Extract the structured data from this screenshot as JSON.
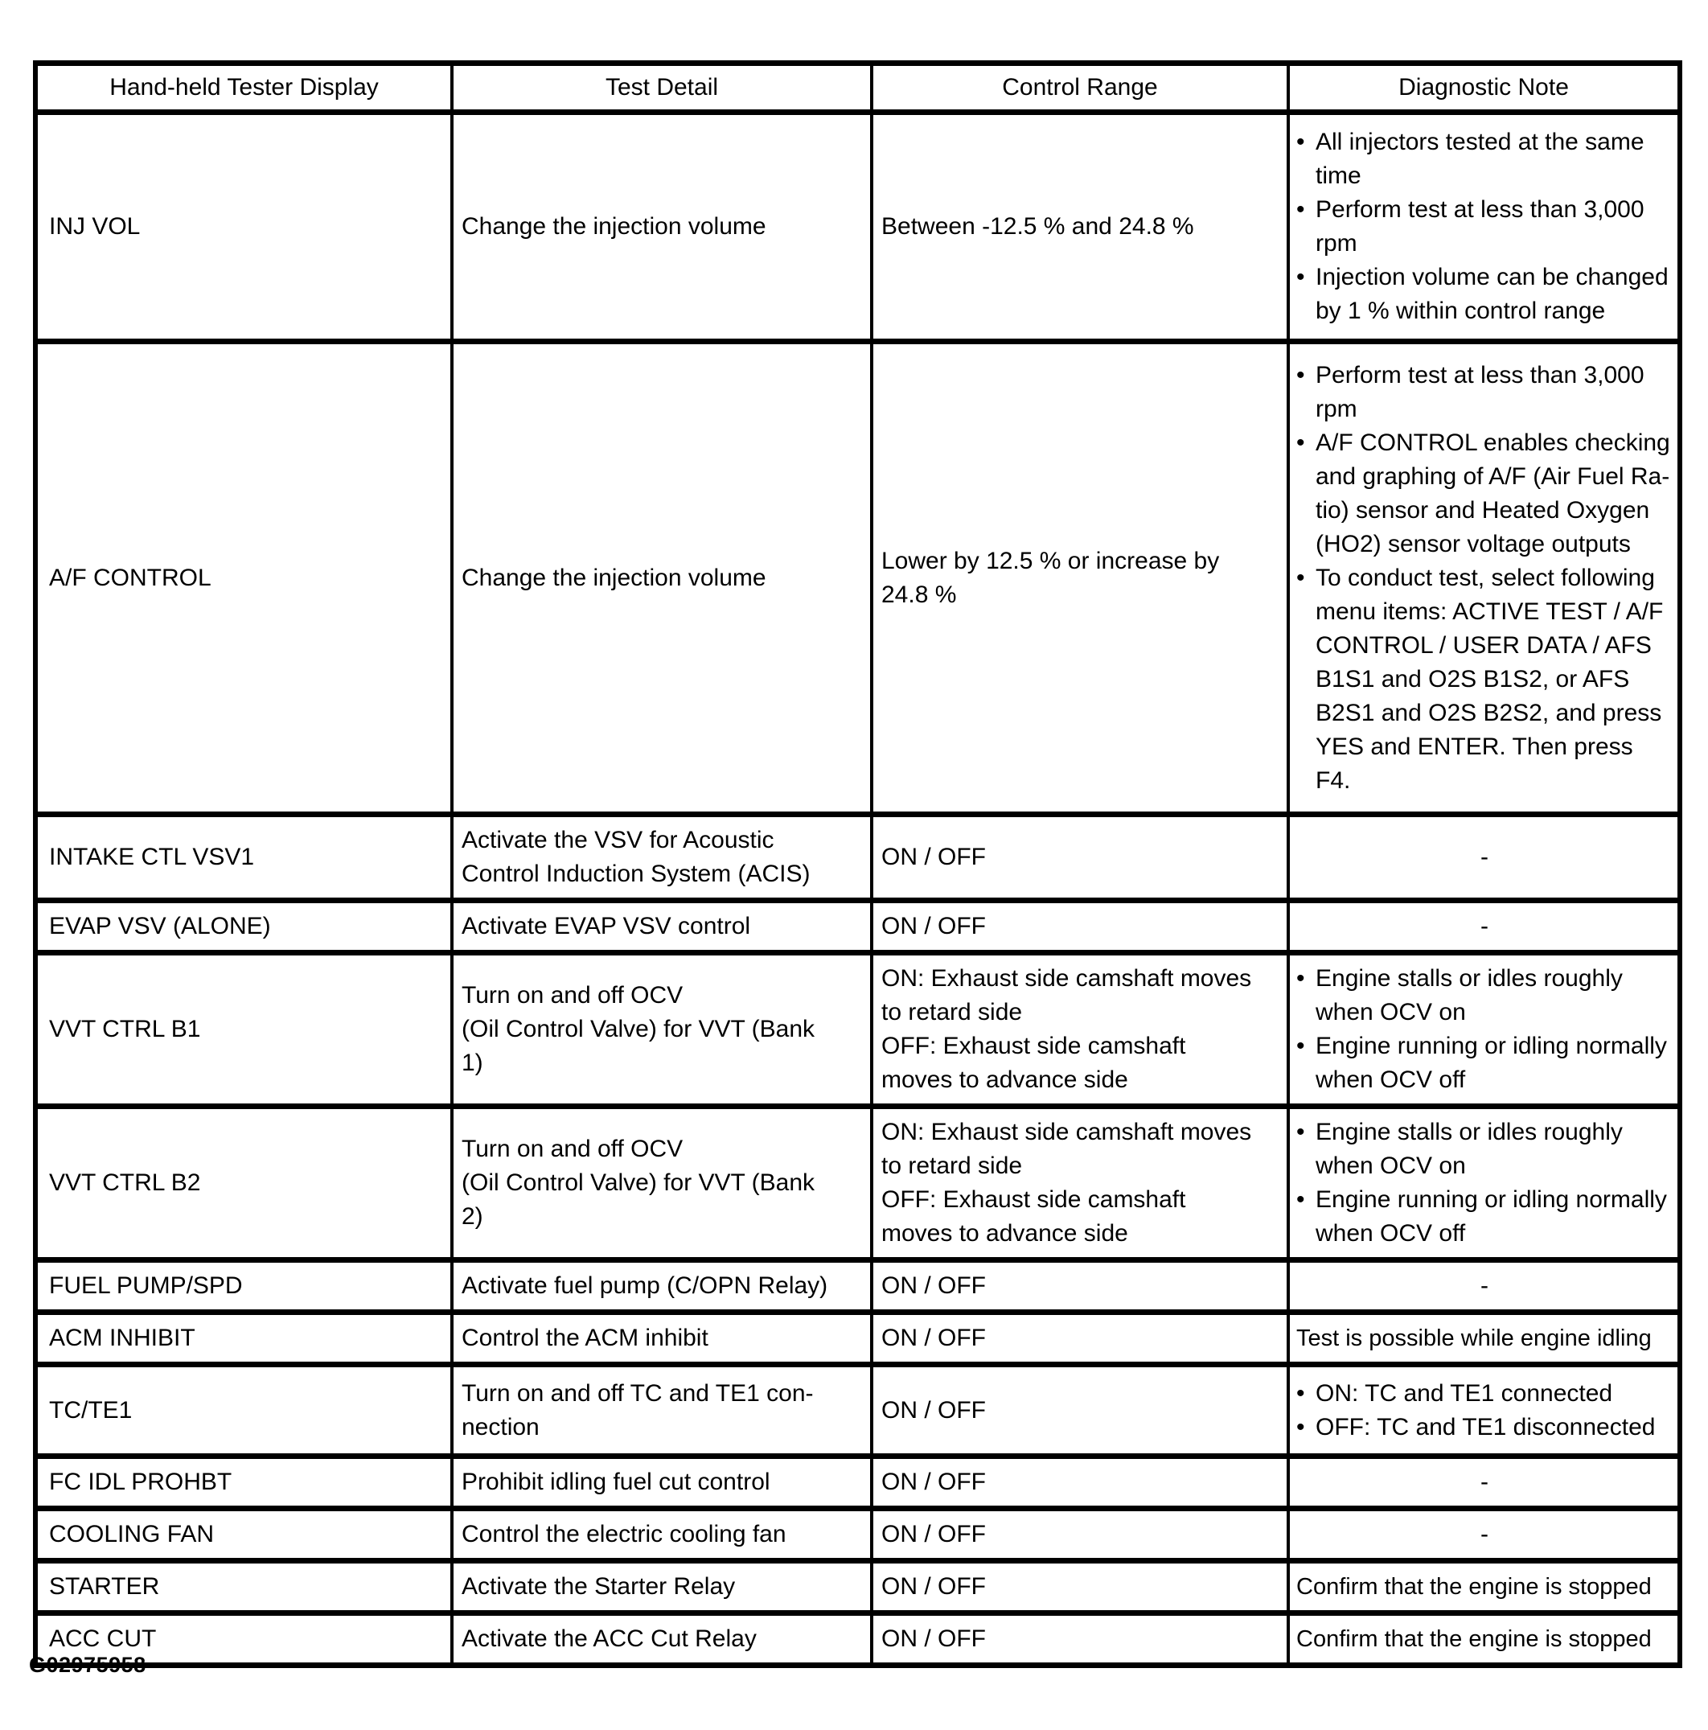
{
  "table": {
    "headers": [
      "Hand-held Tester Display",
      "Test Detail",
      "Control Range",
      "Diagnostic Note"
    ],
    "rows": [
      {
        "display": "INJ VOL",
        "detail": "Change the injection volume",
        "range": "Between -12.5 % and 24.8 %",
        "note": {
          "bullets": [
            "All injectors tested at the same\ntime",
            "Perform test at less than 3,000\nrpm",
            "Injection volume can be changed\nby 1 % within control range"
          ]
        }
      },
      {
        "display": "A/F CONTROL",
        "detail": "Change the injection volume",
        "range": "Lower by 12.5 % or increase by\n24.8 %",
        "note": {
          "bullets": [
            "Perform test at less than 3,000\nrpm",
            "A/F CONTROL enables checking\nand graphing of A/F (Air Fuel Ra-\ntio) sensor and Heated Oxygen\n(HO2) sensor voltage outputs",
            "To conduct test, select following\nmenu items: ACTIVE TEST / A/F\nCONTROL / USER DATA / AFS\nB1S1 and O2S B1S2, or AFS\nB2S1 and O2S B2S2, and press\nYES and ENTER. Then press\nF4."
          ]
        }
      },
      {
        "display": "INTAKE CTL VSV1",
        "detail": "Activate the VSV for Acoustic\nControl Induction System (ACIS)",
        "range": "ON / OFF",
        "note": {
          "text": "-"
        }
      },
      {
        "display": "EVAP VSV (ALONE)",
        "detail": "Activate EVAP VSV control",
        "range": "ON / OFF",
        "note": {
          "text": "-"
        }
      },
      {
        "display": "VVT CTRL B1",
        "detail": "Turn on and off OCV\n(Oil Control Valve) for VVT (Bank\n1)",
        "range": "ON: Exhaust side camshaft moves\nto retard side\nOFF: Exhaust side camshaft\nmoves to advance side",
        "note": {
          "bullets": [
            "Engine stalls or idles roughly\nwhen OCV on",
            "Engine running or idling normally\nwhen OCV off"
          ]
        }
      },
      {
        "display": "VVT CTRL B2",
        "detail": "Turn on and off OCV\n(Oil Control Valve) for VVT (Bank\n2)",
        "range": "ON: Exhaust side camshaft moves\nto retard side\nOFF: Exhaust side camshaft\nmoves to advance side",
        "note": {
          "bullets": [
            "Engine stalls or idles roughly\nwhen OCV on",
            "Engine running or idling normally\nwhen OCV off"
          ]
        }
      },
      {
        "display": "FUEL PUMP/SPD",
        "detail": "Activate fuel pump (C/OPN Relay)",
        "range": "ON / OFF",
        "note": {
          "text": "-"
        }
      },
      {
        "display": "ACM INHIBIT",
        "detail": "Control the ACM inhibit",
        "range": "ON / OFF",
        "note": {
          "text": "Test is possible while engine idling"
        }
      },
      {
        "display": "TC/TE1",
        "detail": "Turn on and off TC and TE1 con-\nnection",
        "range": "ON / OFF",
        "note": {
          "bullets": [
            "ON: TC and TE1 connected",
            "OFF: TC and TE1 disconnected"
          ]
        }
      },
      {
        "display": "FC IDL PROHBT",
        "detail": "Prohibit idling fuel cut control",
        "range": "ON / OFF",
        "note": {
          "text": "-"
        }
      },
      {
        "display": "COOLING FAN",
        "detail": "Control the electric cooling fan",
        "range": "ON / OFF",
        "note": {
          "text": "-"
        }
      },
      {
        "display": "STARTER",
        "detail": "Activate the Starter Relay",
        "range": "ON / OFF",
        "note": {
          "text": "Confirm that the engine is stopped"
        }
      },
      {
        "display": "ACC CUT",
        "detail": "Activate the ACC Cut Relay",
        "range": "ON / OFF",
        "note": {
          "text": "Confirm that the engine is stopped"
        }
      }
    ]
  },
  "footer": {
    "figure_id": "G02975958"
  }
}
